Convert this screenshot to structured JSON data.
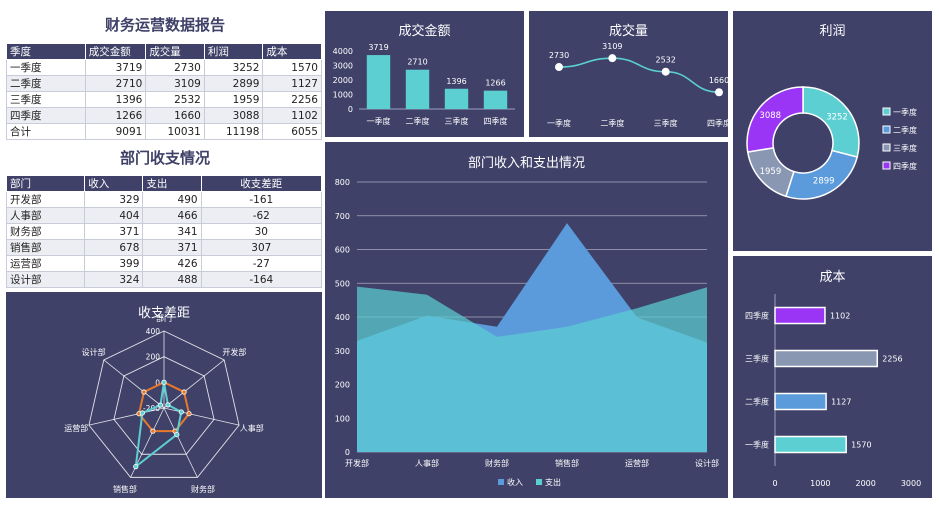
{
  "title_main": "财务运营数据报告",
  "title_dept": "部门收支情况",
  "finance_table": {
    "headers": [
      "季度",
      "成交金额",
      "成交量",
      "利润",
      "成本"
    ],
    "rows": [
      [
        "一季度",
        "3719",
        "2730",
        "3252",
        "1570"
      ],
      [
        "二季度",
        "2710",
        "3109",
        "2899",
        "1127"
      ],
      [
        "三季度",
        "1396",
        "2532",
        "1959",
        "2256"
      ],
      [
        "四季度",
        "1266",
        "1660",
        "3088",
        "1102"
      ],
      [
        "合计",
        "9091",
        "10031",
        "11198",
        "6055"
      ]
    ]
  },
  "dept_table": {
    "headers": [
      "部门",
      "收入",
      "支出",
      "收支差距"
    ],
    "rows": [
      [
        "开发部",
        "329",
        "490",
        "-161"
      ],
      [
        "人事部",
        "404",
        "466",
        "-62"
      ],
      [
        "财务部",
        "371",
        "341",
        "30"
      ],
      [
        "销售部",
        "678",
        "371",
        "307"
      ],
      [
        "运营部",
        "399",
        "426",
        "-27"
      ],
      [
        "设计部",
        "324",
        "488",
        "-164"
      ]
    ]
  },
  "chart_data": [
    {
      "id": "amount",
      "type": "bar",
      "title": "成交金额",
      "categories": [
        "一季度",
        "二季度",
        "三季度",
        "四季度"
      ],
      "values": [
        3719,
        2710,
        1396,
        1266
      ],
      "ylim": [
        0,
        4000
      ],
      "yticks": [
        "0",
        "1000",
        "2000",
        "3000",
        "4000"
      ],
      "color": "#5ccfd3"
    },
    {
      "id": "volume",
      "type": "line",
      "title": "成交量",
      "categories": [
        "一季度",
        "二季度",
        "三季度",
        "四季度"
      ],
      "values": [
        2730,
        3109,
        2532,
        1660
      ],
      "color": "#5ccfd3"
    },
    {
      "id": "profit",
      "type": "pie",
      "title": "利润",
      "labels": [
        "一季度",
        "二季度",
        "三季度",
        "四季度"
      ],
      "values": [
        3252,
        2899,
        1959,
        3088
      ],
      "colors": [
        "#5ccfd3",
        "#5b9bdb",
        "#8a97b3",
        "#9b35f5"
      ],
      "legend": "right"
    },
    {
      "id": "dept",
      "type": "area",
      "title": "部门收入和支出情况",
      "categories": [
        "开发部",
        "人事部",
        "财务部",
        "销售部",
        "运营部",
        "设计部"
      ],
      "series": [
        {
          "name": "收入",
          "values": [
            329,
            404,
            371,
            678,
            399,
            324
          ],
          "color": "#5b9bdb"
        },
        {
          "name": "支出",
          "values": [
            490,
            466,
            341,
            371,
            426,
            488
          ],
          "color": "#5ccfd3"
        }
      ],
      "ylim": [
        0,
        800
      ],
      "yticks": [
        "0",
        "100",
        "200",
        "300",
        "400",
        "500",
        "600",
        "700",
        "800"
      ],
      "legend": "bottom"
    },
    {
      "id": "gap",
      "type": "radar",
      "title": "收支差距",
      "categories": [
        "部门",
        "开发部",
        "人事部",
        "财务部",
        "销售部",
        "运营部",
        "设计部"
      ],
      "series": [
        {
          "values": [
            0,
            0,
            0,
            0,
            0,
            0,
            0
          ],
          "color": "#e8782a"
        },
        {
          "values": [
            0,
            -161,
            -62,
            30,
            307,
            -27,
            -164
          ],
          "color": "#5ccfd3"
        }
      ],
      "range": [
        -200,
        400
      ],
      "ticks": [
        "400",
        "200",
        "0",
        "-200"
      ]
    },
    {
      "id": "cost",
      "type": "bar",
      "orientation": "horizontal",
      "title": "成本",
      "categories": [
        "一季度",
        "二季度",
        "三季度",
        "四季度"
      ],
      "values": [
        1570,
        1127,
        2256,
        1102
      ],
      "colors": [
        "#5ccfd3",
        "#5b9bdb",
        "#8a97b3",
        "#9b35f5"
      ],
      "xlim": [
        0,
        3000
      ],
      "xticks": [
        "0",
        "1000",
        "2000",
        "3000"
      ]
    }
  ]
}
